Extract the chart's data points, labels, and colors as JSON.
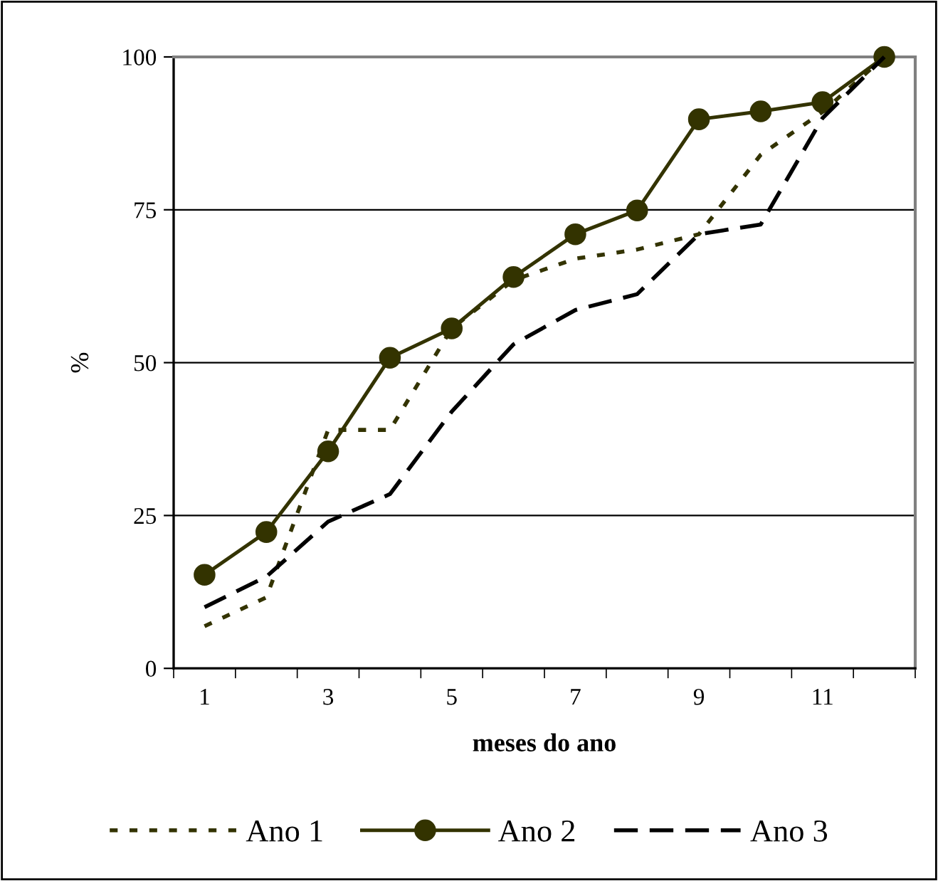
{
  "chart_data": {
    "type": "line",
    "xlabel": "meses do ano",
    "ylabel": "%",
    "categories": [
      "1",
      null,
      "3",
      null,
      "5",
      null,
      "7",
      null,
      "9",
      null,
      "11",
      null
    ],
    "ylim": [
      0,
      100
    ],
    "yticks": [
      0,
      25,
      50,
      75,
      100
    ],
    "grid": "y",
    "legend": "bottom",
    "series": [
      {
        "name": "Ano 1",
        "color": "#333300",
        "line_style": "dotted",
        "marker": "none",
        "values": [
          6.9,
          11.6,
          39,
          39,
          55.6,
          63.5,
          67,
          68.5,
          71,
          84,
          91,
          100
        ]
      },
      {
        "name": "Ano 2",
        "color": "#333300",
        "line_style": "solid",
        "marker": "circle",
        "values": [
          15.3,
          22.3,
          35.5,
          50.8,
          55.6,
          64,
          71,
          74.9,
          89.8,
          91.1,
          92.6,
          100
        ]
      },
      {
        "name": "Ano 3",
        "color": "#000000",
        "line_style": "dashed",
        "marker": "none",
        "values": [
          10,
          15,
          24,
          28.5,
          42,
          53,
          58.6,
          61.2,
          71,
          72.6,
          90,
          100
        ]
      }
    ]
  }
}
